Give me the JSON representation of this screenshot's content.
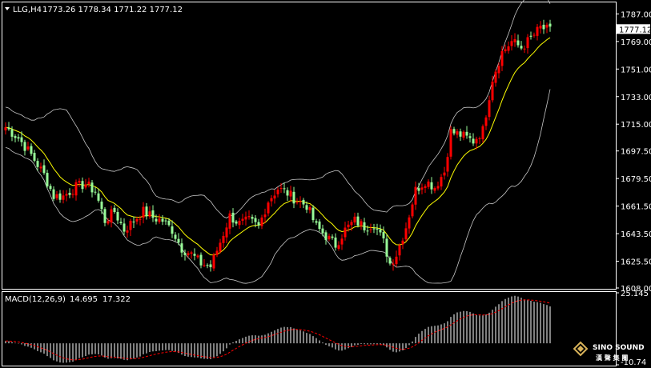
{
  "header": {
    "symbol_tf": "LLG,H4",
    "ohlc": "1773.26 1778.34 1771.22 1777.12"
  },
  "colors": {
    "bull": "#ff0000",
    "bear": "#98fb98",
    "bands": "#c8c8c8",
    "ma": "#ffff00",
    "histogram": "#ffffff",
    "signal": "#ff0000",
    "price_box": "#ffffff"
  },
  "watermark": {
    "brand": "SINO SOUND",
    "sub": "漢 聲 集 團",
    "icon": "diamond-logo-icon"
  },
  "chart_data": [
    {
      "type": "candlestick",
      "panel": "price",
      "ylim": [
        1608,
        1794
      ],
      "y_ticks": [
        "1787.00",
        "1769.00",
        "1751.00",
        "1733.00",
        "1715.00",
        "1697.50",
        "1679.50",
        "1661.50",
        "1643.50",
        "1625.50",
        "1608.00"
      ],
      "current_price": "1777.12",
      "indicators": [
        "Bollinger Bands",
        "Moving Average"
      ],
      "anchors": [
        [
          0,
          1713
        ],
        [
          4,
          1706
        ],
        [
          8,
          1695
        ],
        [
          12,
          1682
        ],
        [
          15,
          1668
        ],
        [
          18,
          1668
        ],
        [
          22,
          1674
        ],
        [
          25,
          1676
        ],
        [
          28,
          1671
        ],
        [
          31,
          1652
        ],
        [
          34,
          1658
        ],
        [
          37,
          1646
        ],
        [
          40,
          1652
        ],
        [
          43,
          1658
        ],
        [
          46,
          1654
        ],
        [
          49,
          1652
        ],
        [
          52,
          1646
        ],
        [
          55,
          1634
        ],
        [
          58,
          1630
        ],
        [
          61,
          1624
        ],
        [
          64,
          1622
        ],
        [
          67,
          1638
        ],
        [
          70,
          1655
        ],
        [
          73,
          1650
        ],
        [
          76,
          1652
        ],
        [
          79,
          1648
        ],
        [
          82,
          1665
        ],
        [
          85,
          1673
        ],
        [
          88,
          1670
        ],
        [
          91,
          1665
        ],
        [
          94,
          1662
        ],
        [
          97,
          1648
        ],
        [
          100,
          1642
        ],
        [
          103,
          1636
        ],
        [
          106,
          1646
        ],
        [
          109,
          1652
        ],
        [
          112,
          1648
        ],
        [
          115,
          1650
        ],
        [
          118,
          1638
        ],
        [
          120,
          1624
        ],
        [
          122,
          1630
        ],
        [
          125,
          1648
        ],
        [
          128,
          1672
        ],
        [
          131,
          1678
        ],
        [
          134,
          1674
        ],
        [
          137,
          1684
        ],
        [
          139,
          1710
        ],
        [
          142,
          1708
        ],
        [
          146,
          1704
        ],
        [
          149,
          1711
        ],
        [
          152,
          1745
        ],
        [
          155,
          1762
        ],
        [
          158,
          1769
        ],
        [
          161,
          1765
        ],
        [
          164,
          1771
        ],
        [
          167,
          1778
        ],
        [
          170,
          1776
        ]
      ],
      "bars": 171
    },
    {
      "type": "macd",
      "panel": "indicator",
      "label": "MACD(12,26,9)",
      "macd": "14.695",
      "signal": "17.322",
      "ylim": [
        -10.74,
        25.145
      ],
      "y_ticks": [
        "25.145",
        "-10.74"
      ]
    }
  ]
}
